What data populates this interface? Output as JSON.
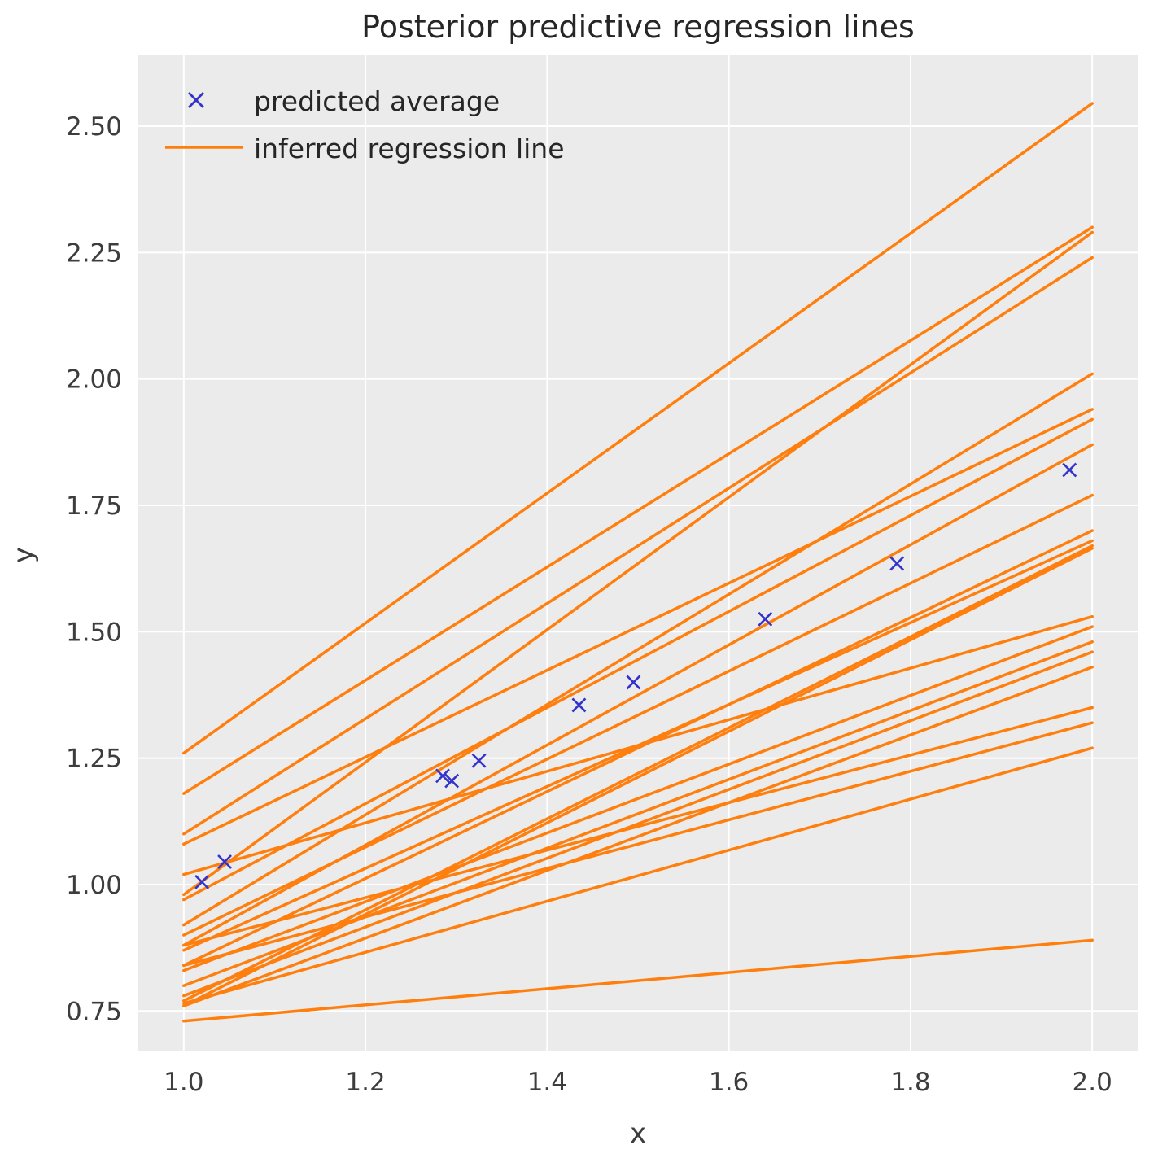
{
  "title": "Posterior predictive regression lines",
  "axes": {
    "xlabel": "x",
    "ylabel": "y"
  },
  "legend": {
    "items": [
      {
        "label": "predicted average",
        "marker": "x",
        "color": "#3333cc"
      },
      {
        "label": "inferred regression line",
        "marker": "line",
        "color": "#ff7f0e"
      }
    ]
  },
  "chart_data": {
    "type": "line",
    "title": "Posterior predictive regression lines",
    "xlabel": "x",
    "ylabel": "y",
    "xlim": [
      0.95,
      2.05
    ],
    "ylim": [
      0.67,
      2.64
    ],
    "xticks": [
      1.0,
      1.2,
      1.4,
      1.6,
      1.8,
      2.0
    ],
    "xtick_labels": [
      "1.0",
      "1.2",
      "1.4",
      "1.6",
      "1.8",
      "2.0"
    ],
    "yticks": [
      0.75,
      1.0,
      1.25,
      1.5,
      1.75,
      2.0,
      2.25,
      2.5
    ],
    "ytick_labels": [
      "0.75",
      "1.00",
      "1.25",
      "1.50",
      "1.75",
      "2.00",
      "2.25",
      "2.50"
    ],
    "grid": true,
    "legend_position": "upper left",
    "plot_background": "#ebebeb",
    "grid_color": "#ffffff",
    "line_color": "#ff7f0e",
    "marker_color": "#3333cc",
    "series": [
      {
        "name": "inferred regression line",
        "style": "line",
        "x_span": [
          1.0,
          2.0
        ],
        "endpoints": [
          [
            1.26,
            2.545
          ],
          [
            1.18,
            2.3
          ],
          [
            0.98,
            2.29
          ],
          [
            1.1,
            2.24
          ],
          [
            0.92,
            2.01
          ],
          [
            1.08,
            1.94
          ],
          [
            0.97,
            1.92
          ],
          [
            0.88,
            1.87
          ],
          [
            0.9,
            1.77
          ],
          [
            0.84,
            1.7
          ],
          [
            0.87,
            1.68
          ],
          [
            0.77,
            1.67
          ],
          [
            0.76,
            1.665
          ],
          [
            1.02,
            1.53
          ],
          [
            0.83,
            1.51
          ],
          [
            0.8,
            1.48
          ],
          [
            0.78,
            1.46
          ],
          [
            0.76,
            1.43
          ],
          [
            0.88,
            1.35
          ],
          [
            0.84,
            1.32
          ],
          [
            0.765,
            1.27
          ],
          [
            0.73,
            0.89
          ]
        ]
      },
      {
        "name": "predicted average",
        "style": "x-marker",
        "x": [
          1.02,
          1.045,
          1.285,
          1.295,
          1.325,
          1.435,
          1.495,
          1.64,
          1.785,
          1.975
        ],
        "y": [
          1.005,
          1.045,
          1.215,
          1.205,
          1.245,
          1.355,
          1.4,
          1.525,
          1.635,
          1.82
        ]
      }
    ]
  }
}
